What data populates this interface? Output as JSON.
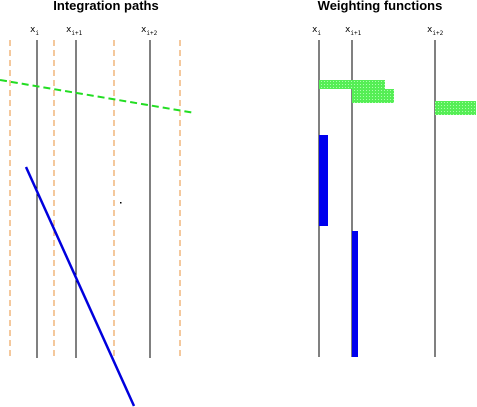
{
  "left_panel": {
    "title": "Integration paths",
    "labels": [
      {
        "base": "x",
        "sub": "i"
      },
      {
        "base": "x",
        "sub": "i+1"
      },
      {
        "base": "x",
        "sub": "i+2"
      }
    ]
  },
  "right_panel": {
    "title": "Weighting functions",
    "labels": [
      {
        "base": "x",
        "sub": "i"
      },
      {
        "base": "x",
        "sub": "i+1"
      },
      {
        "base": "x",
        "sub": "i+2"
      }
    ]
  },
  "colors": {
    "grid_line": "#000000",
    "boundary_line": "#e8913a",
    "green_path": "#22dd22",
    "blue_path": "#0000dd",
    "green_weight": "#55ee55",
    "blue_weight": "#0000ee"
  }
}
